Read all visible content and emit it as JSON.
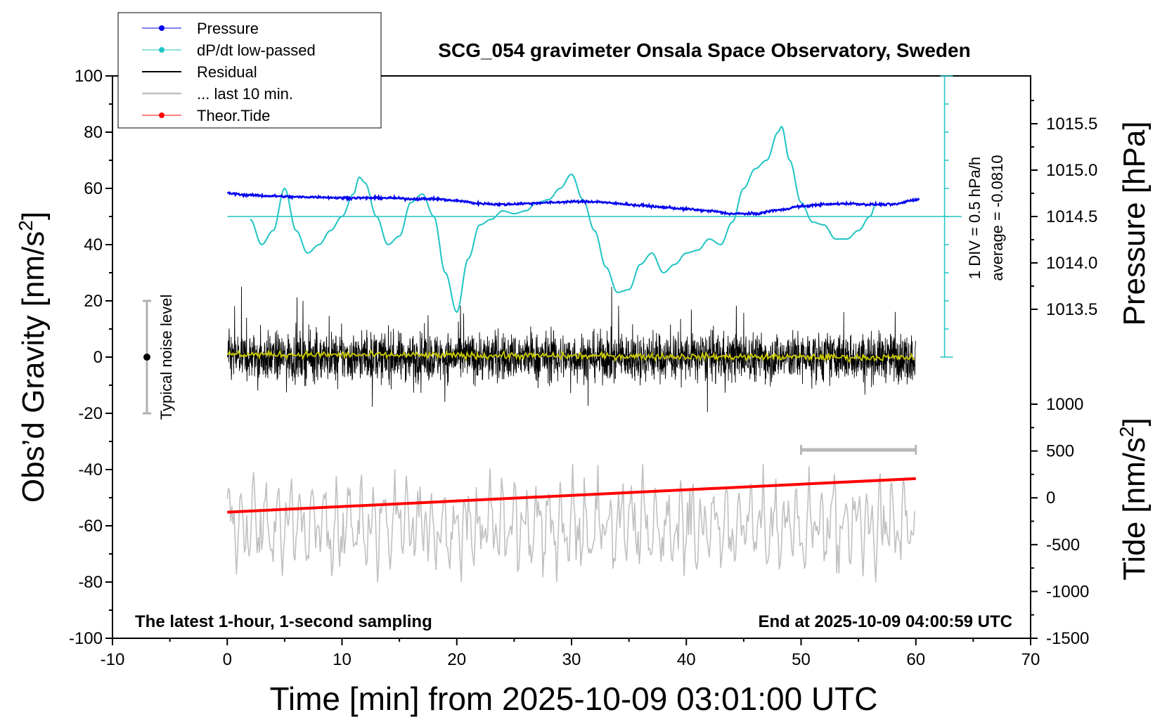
{
  "chart_data": {
    "type": "line",
    "title": "SCG_054 gravimeter Onsala Space Observatory, Sweden",
    "xlabel": "Time [min] from 2025-10-09 03:01:00 UTC",
    "ylabel_left": "Obs'd Gravity [nm/s²]",
    "ylabel_right_top": "Pressure [hPa]",
    "ylabel_right_bottom": "Tide [nm/s²]",
    "xlim": [
      -10,
      70
    ],
    "ylim": [
      -100,
      100
    ],
    "x_ticks": [
      "-10",
      "0",
      "10",
      "20",
      "30",
      "40",
      "50",
      "60",
      "70"
    ],
    "y_ticks": [
      "-100",
      "-80",
      "-60",
      "-40",
      "-20",
      "0",
      "20",
      "40",
      "60",
      "80",
      "100"
    ],
    "pressure_axis": {
      "range": [
        1013.5,
        1015.5
      ],
      "ticks": [
        "1013.5",
        "1014.0",
        "1014.5",
        "1015.0",
        "1015.5"
      ]
    },
    "tide_axis": {
      "range": [
        -1500,
        1000
      ],
      "ticks": [
        "-1500",
        "-1000",
        "-500",
        "0",
        "500",
        "1000"
      ]
    },
    "legend": [
      "Pressure",
      "dP/dt low-passed",
      "Residual",
      "... last 10 min.",
      "Theor.Tide"
    ],
    "legend_placement": "top-left",
    "dpdt_scale_note": "1 DIV = 0.5 hPa/h",
    "dpdt_average_note": "average = -0.0810",
    "noise_label": "Typical noise level",
    "noise_bar": [
      -20,
      20
    ],
    "footer_left": "The latest 1-hour, 1-second sampling",
    "footer_right": "End at 2025-10-09 04:00:59 UTC",
    "last10_bar": [
      50,
      60
    ],
    "series": [
      {
        "name": "Pressure",
        "axis": "pressure",
        "color": "#0000ee",
        "x": [
          0,
          2,
          4,
          6,
          8,
          10,
          12,
          14,
          16,
          18,
          20,
          22,
          24,
          26,
          28,
          30,
          32,
          34,
          36,
          38,
          40,
          42,
          44,
          46,
          48,
          50,
          52,
          54,
          56,
          58,
          60
        ],
        "values": [
          1014.75,
          1014.73,
          1014.72,
          1014.71,
          1014.71,
          1014.7,
          1014.7,
          1014.7,
          1014.69,
          1014.69,
          1014.67,
          1014.64,
          1014.63,
          1014.64,
          1014.65,
          1014.66,
          1014.66,
          1014.64,
          1014.62,
          1014.6,
          1014.58,
          1014.56,
          1014.53,
          1014.53,
          1014.57,
          1014.61,
          1014.63,
          1014.64,
          1014.63,
          1014.63,
          1014.68
        ]
      },
      {
        "name": "dP/dt low-passed",
        "axis": "gravity",
        "color": "#20c4c4",
        "x": [
          2,
          3,
          4,
          5,
          6,
          7,
          8,
          9,
          10,
          11,
          11.5,
          12,
          13,
          14,
          15,
          16,
          17,
          18,
          19,
          20,
          21,
          22,
          23,
          24,
          25,
          26,
          27,
          28,
          29,
          30,
          31,
          32,
          33,
          34,
          35,
          36,
          37,
          38,
          39,
          40,
          41,
          42,
          43,
          44,
          45,
          46,
          47,
          48,
          48.3,
          49,
          50,
          51,
          52,
          53,
          54,
          55,
          56,
          56.5
        ],
        "values": [
          49,
          40,
          45,
          60,
          45,
          37,
          40,
          45,
          50,
          58,
          64,
          62,
          50,
          40,
          43,
          55,
          58,
          50,
          30,
          16,
          35,
          47,
          49,
          52,
          51,
          52,
          55,
          56,
          60,
          65,
          56,
          45,
          32,
          23,
          24,
          33,
          37,
          30,
          33,
          37,
          38,
          42,
          40,
          48,
          60,
          67,
          70,
          80,
          82,
          70,
          55,
          48,
          47,
          42,
          42,
          45,
          50,
          54
        ]
      },
      {
        "name": "Theor.Tide",
        "axis": "tide",
        "color": "#ff0000",
        "x": [
          0,
          60
        ],
        "values": [
          -153,
          205
        ]
      }
    ]
  }
}
